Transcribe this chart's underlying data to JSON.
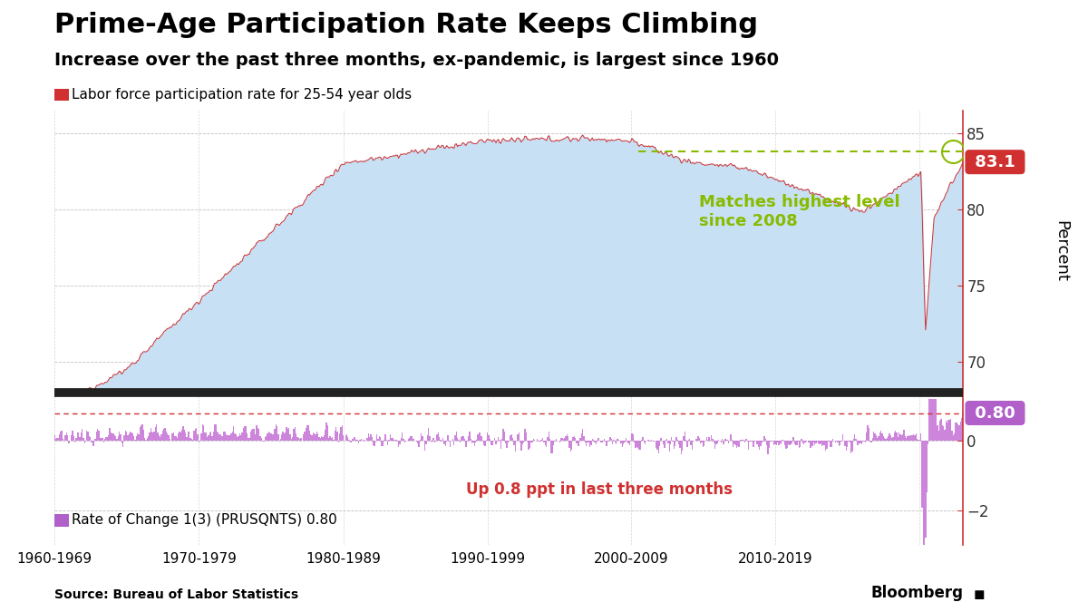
{
  "title": "Prime-Age Participation Rate Keeps Climbing",
  "subtitle": "Increase over the past three months, ex-pandemic, is largest since 1960",
  "legend1": "Labor force participation rate for 25-54 year olds",
  "legend2": "Rate of Change 1(3) (PRUSQNTS) 0.80",
  "source": "Source: Bureau of Labor Statistics",
  "bloomberg": "Bloomberg",
  "ylabel": "Percent",
  "annotation_green": "Matches highest level\nsince 2008",
  "annotation_red": "Up 0.8 ppt in last three months",
  "last_value_top": "83.1",
  "last_value_bot": "0.80",
  "yticks_top": [
    70,
    75,
    80,
    85
  ],
  "yticks_bot": [
    -2.0,
    0.0
  ],
  "xtick_labels": [
    "1960-1969",
    "1970-1979",
    "1980-1989",
    "1990-1999",
    "2000-2009",
    "2010-2019"
  ],
  "background_color": "#ffffff",
  "fill_color": "#c8e0f4",
  "line_color_top": "#d03030",
  "line_color_bot": "#c878d8",
  "dashed_green_color": "#88bb00",
  "separator_color": "#222222",
  "grid_color": "#bbbbbb",
  "box_red_color": "#d03030",
  "box_purple_color": "#b060c8",
  "title_fontsize": 22,
  "subtitle_fontsize": 14,
  "label_fontsize": 11,
  "tick_fontsize": 12
}
